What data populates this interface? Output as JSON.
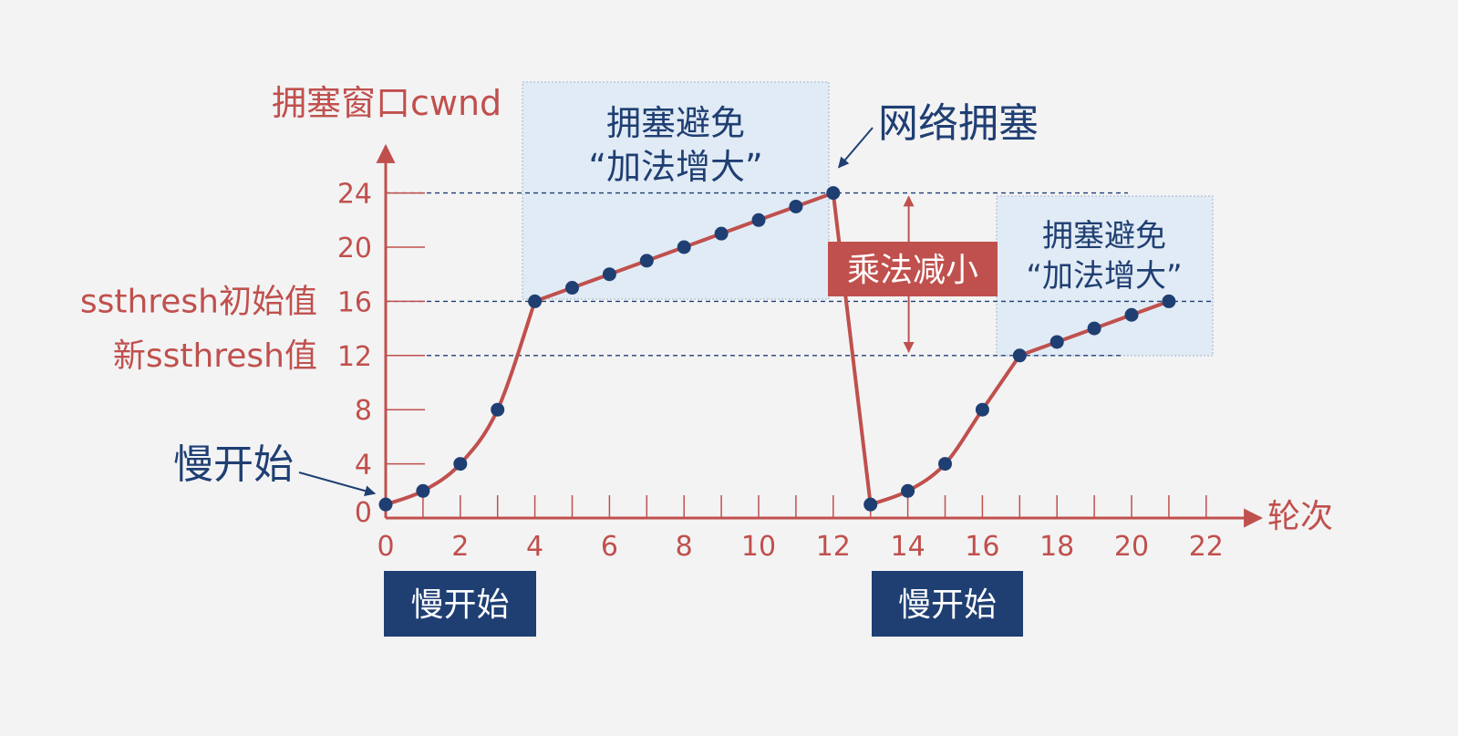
{
  "colors": {
    "background": "#f3f3f4",
    "axis": "#c0504d",
    "curve": "#c0504d",
    "points": "#1f3f73",
    "dashed": "#1f3f73",
    "region_fill": "#dce8f5",
    "phase_box": "#1f3f73",
    "mult_box": "#c0504d"
  },
  "chart_data": {
    "type": "line",
    "ylabel": "拥塞窗口cwnd",
    "xlabel": "轮次",
    "xlim": [
      0,
      23
    ],
    "ylim": [
      0,
      27
    ],
    "x_ticks": [
      0,
      2,
      4,
      6,
      8,
      10,
      12,
      14,
      16,
      18,
      20,
      22
    ],
    "x_minor_ticks": [
      1,
      3,
      5,
      7,
      9,
      11,
      13,
      15,
      17,
      19,
      21
    ],
    "y_ticks": [
      0,
      4,
      8,
      12,
      16,
      20,
      24
    ],
    "reference_lines": [
      {
        "y": 24,
        "x_start": 0,
        "x_end": 20
      },
      {
        "y": 16,
        "x_start": 0,
        "x_end": 22
      },
      {
        "y": 12,
        "x_start": 0,
        "x_end": 20
      }
    ],
    "y_annotations": [
      {
        "y": 16,
        "label": "ssthresh初始值"
      },
      {
        "y": 12,
        "label": "新ssthresh值"
      }
    ],
    "series": [
      {
        "points": [
          [
            0,
            1
          ],
          [
            1,
            2
          ],
          [
            2,
            4
          ],
          [
            3,
            8
          ],
          [
            4,
            16
          ],
          [
            5,
            17
          ],
          [
            6,
            18
          ],
          [
            7,
            19
          ],
          [
            8,
            20
          ],
          [
            9,
            21
          ],
          [
            10,
            22
          ],
          [
            11,
            23
          ],
          [
            12,
            24
          ],
          [
            13,
            1
          ],
          [
            14,
            2
          ],
          [
            15,
            4
          ],
          [
            16,
            8
          ],
          [
            17,
            12
          ],
          [
            18,
            13
          ],
          [
            19,
            14
          ],
          [
            20,
            15
          ],
          [
            21,
            16
          ]
        ]
      }
    ],
    "regions": [
      {
        "x_start": 3.8,
        "x_end": 12,
        "y_start": 16,
        "y_end": 40,
        "label_lines": [
          "拥塞避免",
          "“加法增大”"
        ]
      },
      {
        "x_start": 17,
        "x_end": 22.5,
        "y_start": 12,
        "y_end": 30,
        "label_lines": [
          "拥塞避免",
          "“加法增大”"
        ]
      }
    ],
    "annotations": {
      "congestion": {
        "label": "网络拥塞",
        "x": 12,
        "y": 24
      },
      "slow_start_arrow": {
        "label": "慢开始",
        "x": 0,
        "y": 1
      },
      "multiplicative_decrease": {
        "label": "乘法减小",
        "x": 14,
        "y_from": 24,
        "y_to": 12
      }
    },
    "phase_labels": [
      {
        "label": "慢开始",
        "x_start": 0,
        "x_end": 4.2
      },
      {
        "label": "慢开始",
        "x_start": 13.5,
        "x_end": 17.6
      }
    ]
  }
}
